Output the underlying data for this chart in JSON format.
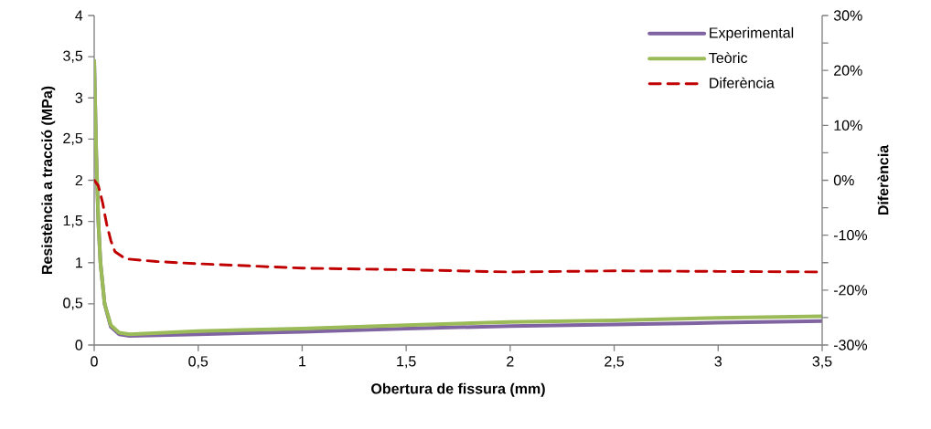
{
  "chart_data": {
    "type": "line",
    "xlabel": "Obertura de fissura (mm)",
    "ylabel": "Resistència a tracció (MPa)",
    "y2label": "Diferència",
    "xlim": [
      0,
      3.5
    ],
    "ylim": [
      0,
      4
    ],
    "y2lim": [
      -30,
      30
    ],
    "xticks": [
      0,
      {
        "value": 0.5,
        "label": "0,5"
      },
      1,
      {
        "value": 1.5,
        "label": "1,5"
      },
      2,
      {
        "value": 2.5,
        "label": "2,5"
      },
      3,
      {
        "value": 3.5,
        "label": "3,5"
      }
    ],
    "yticks": [
      0,
      {
        "value": 0.5,
        "label": "0,5"
      },
      1,
      {
        "value": 1.5,
        "label": "1,5"
      },
      2,
      {
        "value": 2.5,
        "label": "2,5"
      },
      3,
      {
        "value": 3.5,
        "label": "3,5"
      },
      4
    ],
    "y2ticks": [
      {
        "value": -30,
        "label": "-30%"
      },
      {
        "value": -25,
        "label": null
      },
      {
        "value": -20,
        "label": "-20%"
      },
      {
        "value": -15,
        "label": null
      },
      {
        "value": -10,
        "label": "-10%"
      },
      {
        "value": -5,
        "label": null
      },
      {
        "value": 0,
        "label": "0%"
      },
      {
        "value": 5,
        "label": null
      },
      {
        "value": 10,
        "label": "10%"
      },
      {
        "value": 15,
        "label": null
      },
      {
        "value": 20,
        "label": "20%"
      },
      {
        "value": 25,
        "label": null
      },
      {
        "value": 30,
        "label": "30%"
      }
    ],
    "legend": "top right",
    "grid": false,
    "marker": "none",
    "series": [
      {
        "name": "Experimental",
        "color": "#8064a2",
        "line_style": "solid",
        "x": [
          0,
          0.01,
          0.02,
          0.03,
          0.05,
          0.08,
          0.12,
          0.17,
          0.5,
          1,
          1.5,
          2,
          2.5,
          3,
          3.5
        ],
        "values": [
          3.45,
          2.3,
          1.5,
          1.0,
          0.5,
          0.22,
          0.13,
          0.11,
          0.13,
          0.16,
          0.2,
          0.23,
          0.25,
          0.27,
          0.29
        ]
      },
      {
        "name": "Teòric",
        "color": "#9bbb59",
        "line_style": "solid",
        "x": [
          0,
          0.01,
          0.02,
          0.03,
          0.05,
          0.08,
          0.12,
          0.17,
          0.5,
          1,
          1.5,
          2,
          2.5,
          3,
          3.5
        ],
        "values": [
          3.45,
          2.3,
          1.5,
          1.0,
          0.5,
          0.24,
          0.15,
          0.13,
          0.17,
          0.2,
          0.24,
          0.28,
          0.3,
          0.33,
          0.35
        ]
      },
      {
        "name": "Diferència",
        "color": "#c00000",
        "line_style": "dashed",
        "axis": "y2",
        "x": [
          0,
          0.02,
          0.04,
          0.06,
          0.08,
          0.1,
          0.15,
          0.3,
          0.5,
          1,
          1.5,
          2,
          2.5,
          3,
          3.5
        ],
        "values": [
          0,
          -1,
          -4,
          -8,
          -11,
          -13,
          -14.3,
          -14.8,
          -15.2,
          -16,
          -16.3,
          -16.7,
          -16.5,
          -16.6,
          -16.7
        ]
      }
    ]
  }
}
